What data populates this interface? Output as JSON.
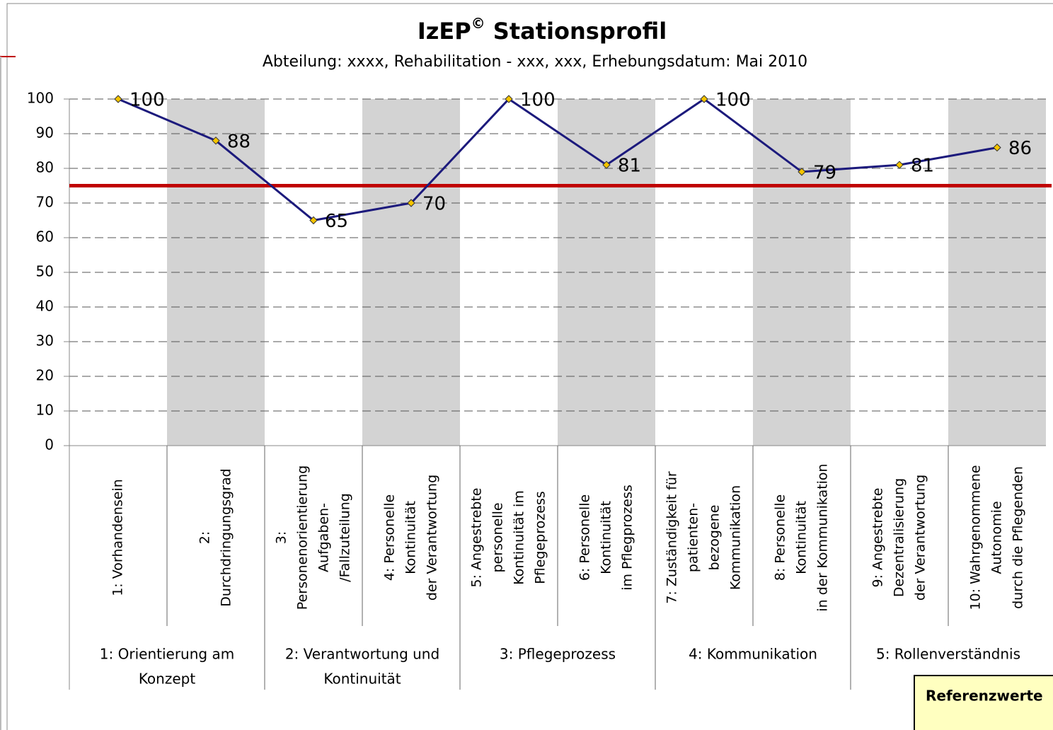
{
  "chart_data": {
    "type": "line",
    "title": [
      "IzEP",
      "©",
      " Stationsprofil"
    ],
    "subtitle": "Abteilung: xxxx, Rehabilitation - xxx, xxx, Erhebungsdatum: Mai 2010",
    "categories": [
      [
        "1: Vorhandensein"
      ],
      [
        "2:",
        "Durchdringungsgrad"
      ],
      [
        "3:",
        "Personenorientierung",
        "Aufgaben-",
        "/Fallzuteilung"
      ],
      [
        "4: Personelle",
        "Kontinuität",
        "der Verantwortung"
      ],
      [
        "5: Angestrebte",
        "personelle",
        "Kontinuität im",
        "Pflegeprozess"
      ],
      [
        "6: Personelle",
        "Kontinuität",
        "im Pflegprozess"
      ],
      [
        "7: Zuständigkeit für",
        "patienten-",
        "bezogene",
        "Kommunikation"
      ],
      [
        "8: Personelle",
        "Kontinuität",
        "in der Kommunikation"
      ],
      [
        "9: Angestrebte",
        "Dezentralisierung",
        "der Verantwortung"
      ],
      [
        "10: Wahrgenommene",
        "Autonomie",
        "durch die Pflegenden"
      ]
    ],
    "groups": [
      {
        "label": [
          "1: Orientierung am",
          "Konzept"
        ],
        "span": 2
      },
      {
        "label": [
          "2: Verantwortung und",
          "Kontinuität"
        ],
        "span": 2
      },
      {
        "label": [
          "3: Pflegeprozess"
        ],
        "span": 2
      },
      {
        "label": [
          "4: Kommunikation"
        ],
        "span": 2
      },
      {
        "label": [
          "5: Rollenverständnis"
        ],
        "span": 2
      }
    ],
    "series": [
      {
        "name": "Stationsprofil",
        "color": "#1c1a7c",
        "marker_color": "#f5c400",
        "values": [
          100,
          88,
          65,
          70,
          100,
          81,
          100,
          79,
          81,
          86
        ]
      }
    ],
    "reference_line": {
      "value": 75,
      "color": "#c00000"
    },
    "band_color": "#d3d3d3",
    "ylim": [
      0,
      100
    ],
    "yticks": [
      0,
      10,
      20,
      30,
      40,
      50,
      60,
      70,
      80,
      90,
      100
    ],
    "grid": true,
    "note_box": {
      "title": "Referenzwerte",
      "color": "#ffffc0"
    }
  }
}
